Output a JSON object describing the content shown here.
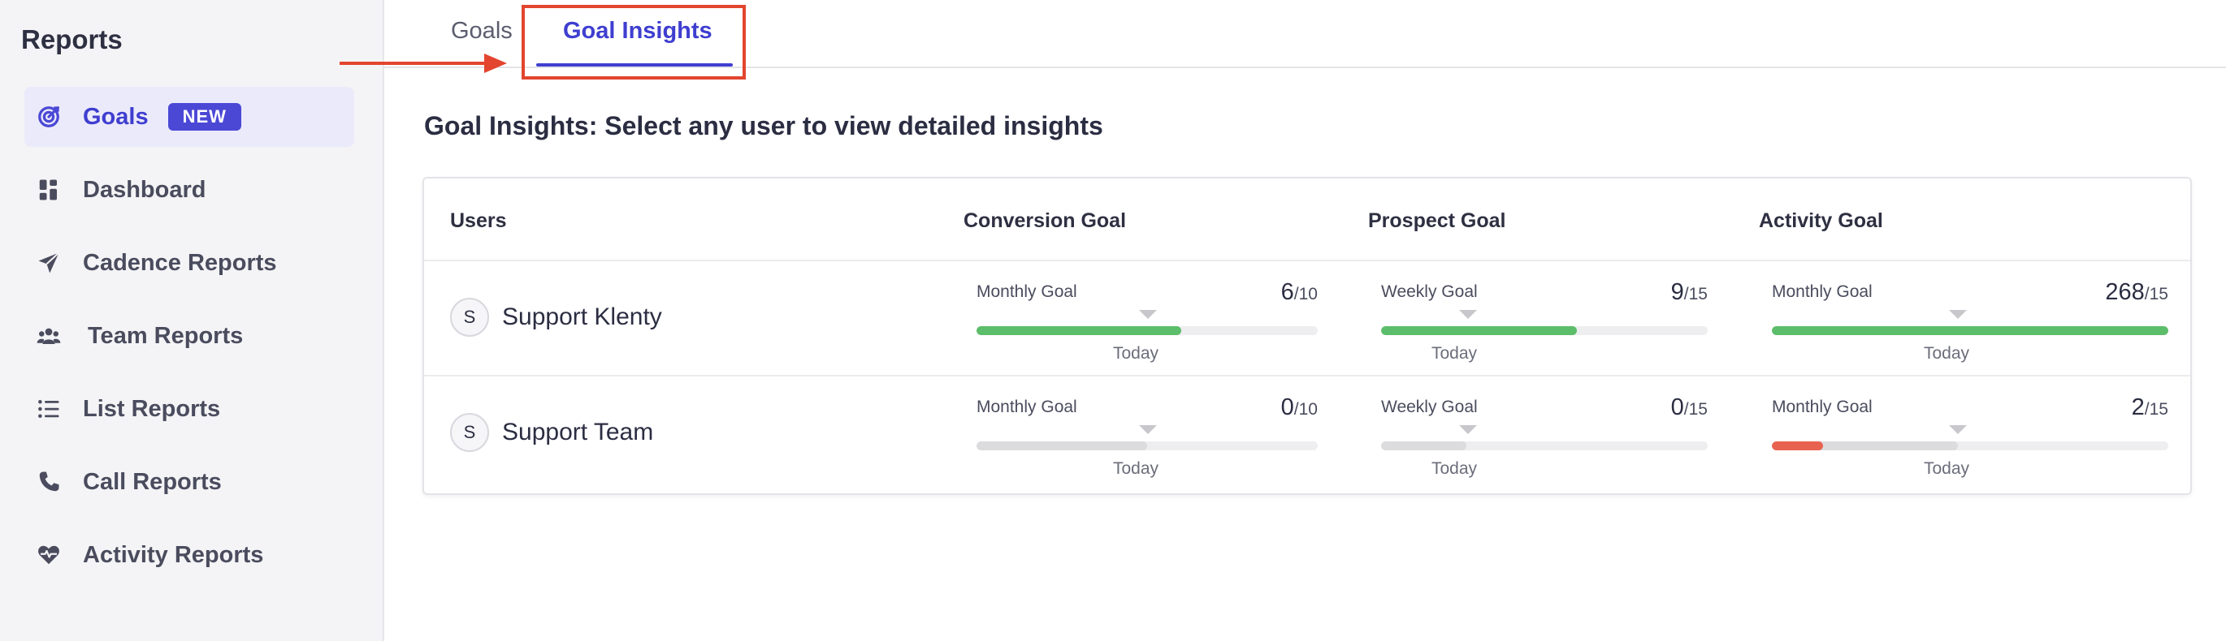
{
  "sidebar": {
    "title": "Reports",
    "items": [
      {
        "label": "Goals",
        "badge": "NEW",
        "icon": "target-icon"
      },
      {
        "label": "Dashboard",
        "icon": "dashboard-icon"
      },
      {
        "label": "Cadence Reports",
        "icon": "paper-plane-icon"
      },
      {
        "label": "Team Reports",
        "icon": "team-icon"
      },
      {
        "label": "List Reports",
        "icon": "list-icon"
      },
      {
        "label": "Call Reports",
        "icon": "phone-icon"
      },
      {
        "label": "Activity Reports",
        "icon": "heart-pulse-icon"
      }
    ]
  },
  "tabs": {
    "goals": "Goals",
    "insights": "Goal Insights"
  },
  "main": {
    "heading": "Goal Insights: Select any user to view detailed insights",
    "columns": {
      "users": "Users",
      "conversion": "Conversion Goal",
      "prospect": "Prospect Goal",
      "activity": "Activity Goal"
    },
    "rows": [
      {
        "initial": "S",
        "name": "Support Klenty",
        "conversion": {
          "label": "Monthly Goal",
          "value": "6",
          "target": "/10",
          "today": "Today"
        },
        "prospect": {
          "label": "Weekly Goal",
          "value": "9",
          "target": "/15",
          "today": "Today"
        },
        "activity": {
          "label": "Monthly Goal",
          "value": "268",
          "target": "/15",
          "today": "Today"
        }
      },
      {
        "initial": "S",
        "name": "Support Team",
        "conversion": {
          "label": "Monthly Goal",
          "value": "0",
          "target": "/10",
          "today": "Today"
        },
        "prospect": {
          "label": "Weekly Goal",
          "value": "0",
          "target": "/15",
          "today": "Today"
        },
        "activity": {
          "label": "Monthly Goal",
          "value": "2",
          "target": "/15",
          "today": "Today"
        }
      }
    ]
  },
  "colors": {
    "accent": "#3f3ed0",
    "success": "#5cbd6a",
    "danger": "#e8634f",
    "highlight": "#e3452e"
  }
}
